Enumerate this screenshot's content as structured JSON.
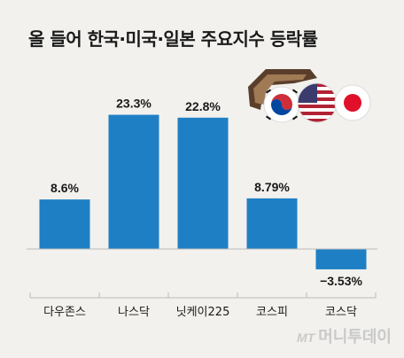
{
  "title": "올 들어 한국·미국·일본 주요지수 등락률",
  "watermark": {
    "brand": "MT",
    "name": "머니투데이"
  },
  "colors": {
    "bar": "#1f7fc4",
    "background": "#f2f1ee",
    "axis": "#bbbbbb"
  },
  "flags": [
    "south-korea-flag-icon",
    "usa-flag-icon",
    "japan-flag-icon"
  ],
  "chart_data": {
    "type": "bar",
    "categories": [
      "다우존스",
      "나스닥",
      "닛케이225",
      "코스피",
      "코스닥"
    ],
    "values": [
      8.6,
      23.3,
      22.8,
      8.79,
      -3.53
    ],
    "labels": [
      "8.6%",
      "23.3%",
      "22.8%",
      "8.79%",
      "−3.53%"
    ],
    "title": "올 들어 한국·미국·일본 주요지수 등락률",
    "xlabel": "",
    "ylabel": "",
    "unit": "%",
    "grid": false
  }
}
